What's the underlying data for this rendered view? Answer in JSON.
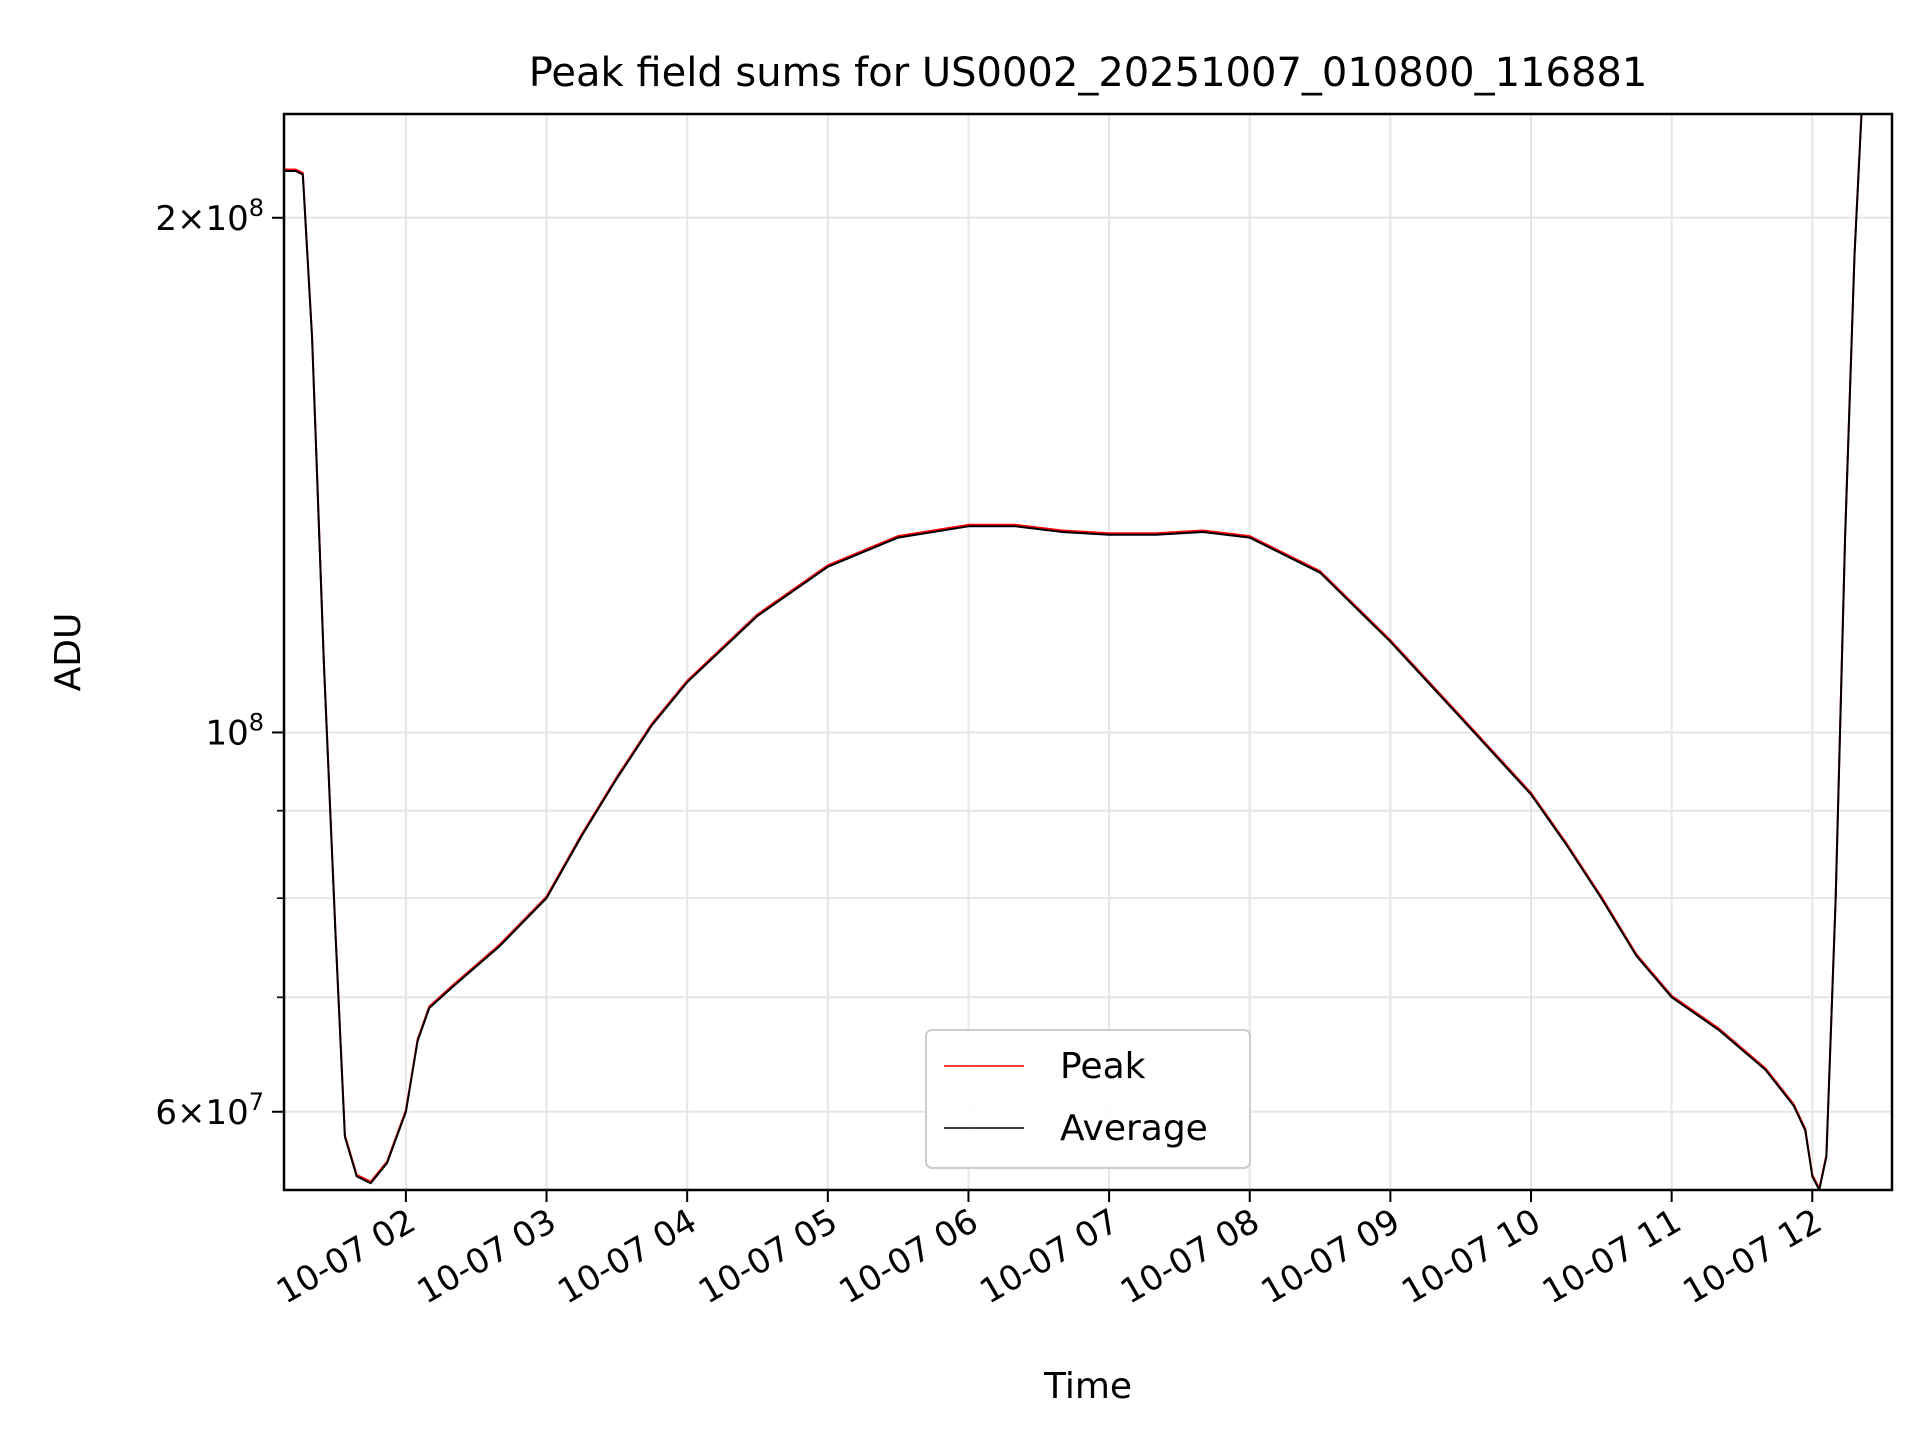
{
  "chart_data": {
    "type": "line",
    "title": "Peak field sums for US0002_20251007_010800_116881",
    "xlabel": "Time",
    "ylabel": "ADU",
    "x_axis": {
      "type": "time",
      "range": [
        "2025-10-07 01:08",
        "2025-10-07 12:34"
      ],
      "ticks": [
        "2025-10-07 02:00",
        "2025-10-07 03:00",
        "2025-10-07 04:00",
        "2025-10-07 05:00",
        "2025-10-07 06:00",
        "2025-10-07 07:00",
        "2025-10-07 08:00",
        "2025-10-07 09:00",
        "2025-10-07 10:00",
        "2025-10-07 11:00",
        "2025-10-07 12:00"
      ],
      "tick_labels": [
        "10-07 02",
        "10-07 03",
        "10-07 04",
        "10-07 05",
        "10-07 06",
        "10-07 07",
        "10-07 08",
        "10-07 09",
        "10-07 10",
        "10-07 11",
        "10-07 12"
      ]
    },
    "y_axis": {
      "scale": "log",
      "range": [
        54000000,
        230000000
      ],
      "major_ticks": [
        {
          "value": 200000000,
          "mantissa": "2",
          "exponent": "8"
        },
        {
          "value": 100000000,
          "mantissa": "",
          "exponent": "8"
        },
        {
          "value": 60000000,
          "mantissa": "6",
          "exponent": "7"
        }
      ],
      "minor_ticks": [
        70000000,
        80000000,
        90000000
      ]
    },
    "grid": true,
    "legend": {
      "position": "lower center"
    },
    "series": [
      {
        "name": "Peak",
        "color": "#ff0000"
      },
      {
        "name": "Average",
        "color": "#000000"
      }
    ],
    "x": [
      "2025-10-07 01:08",
      "2025-10-07 01:13",
      "2025-10-07 01:16",
      "2025-10-07 01:20",
      "2025-10-07 01:25",
      "2025-10-07 01:30",
      "2025-10-07 01:34",
      "2025-10-07 01:39",
      "2025-10-07 01:45",
      "2025-10-07 01:52",
      "2025-10-07 02:00",
      "2025-10-07 02:05",
      "2025-10-07 02:10",
      "2025-10-07 02:20",
      "2025-10-07 02:40",
      "2025-10-07 03:00",
      "2025-10-07 03:15",
      "2025-10-07 03:30",
      "2025-10-07 03:45",
      "2025-10-07 04:00",
      "2025-10-07 04:30",
      "2025-10-07 05:00",
      "2025-10-07 05:30",
      "2025-10-07 06:00",
      "2025-10-07 06:20",
      "2025-10-07 06:40",
      "2025-10-07 07:00",
      "2025-10-07 07:20",
      "2025-10-07 07:40",
      "2025-10-07 08:00",
      "2025-10-07 08:30",
      "2025-10-07 09:00",
      "2025-10-07 09:30",
      "2025-10-07 10:00",
      "2025-10-07 10:15",
      "2025-10-07 10:30",
      "2025-10-07 10:45",
      "2025-10-07 11:00",
      "2025-10-07 11:20",
      "2025-10-07 11:40",
      "2025-10-07 11:52",
      "2025-10-07 11:57",
      "2025-10-07 12:00",
      "2025-10-07 12:03",
      "2025-10-07 12:06",
      "2025-10-07 12:10",
      "2025-10-07 12:14",
      "2025-10-07 12:18",
      "2025-10-07 12:21"
    ],
    "y": [
      213000000,
      213000000,
      212000000,
      170000000,
      110000000,
      76000000,
      58000000,
      55000000,
      54500000,
      56000000,
      60000000,
      66000000,
      69000000,
      71000000,
      75000000,
      80000000,
      87000000,
      94000000,
      101000000,
      107000000,
      117000000,
      125000000,
      130000000,
      132000000,
      132000000,
      131000000,
      130500000,
      130500000,
      131000000,
      130000000,
      124000000,
      113000000,
      102000000,
      92000000,
      86000000,
      80000000,
      74000000,
      70000000,
      67000000,
      63500000,
      60500000,
      58500000,
      55000000,
      54000000,
      56500000,
      80000000,
      130000000,
      190000000,
      230000000
    ]
  }
}
